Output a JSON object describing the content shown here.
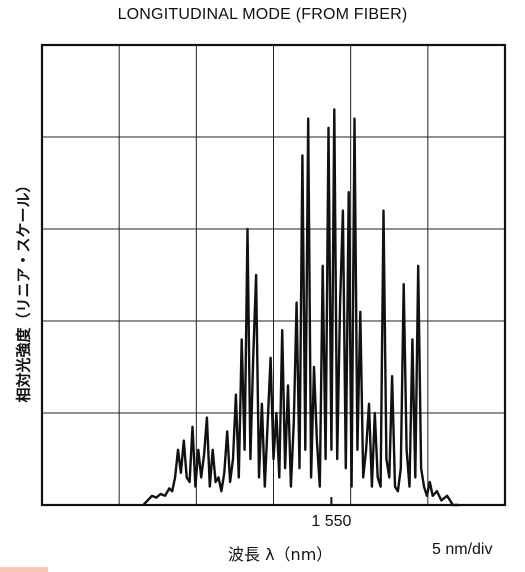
{
  "chart_data": {
    "type": "line",
    "title": "LONGITUDINAL MODE (FROM FIBER)",
    "ylabel": "相対光強度（リニア・スケール）",
    "xlabel": "波長 λ（nm）",
    "x_scale_label": "5 nm/div",
    "x_ticks": [
      {
        "value": 1550,
        "label": "1 550"
      }
    ],
    "xlim": [
      1530,
      1562
    ],
    "ylim": [
      0,
      5
    ],
    "grid": true,
    "series": [
      {
        "x": [
          1537.0,
          1537.3,
          1537.6,
          1537.9,
          1538.2,
          1538.5,
          1538.8,
          1539.0,
          1539.2,
          1539.4,
          1539.6,
          1539.8,
          1540.0,
          1540.2,
          1540.4,
          1540.6,
          1540.8,
          1541.0,
          1541.2,
          1541.4,
          1541.6,
          1541.8,
          1542.0,
          1542.2,
          1542.4,
          1542.6,
          1542.8,
          1543.0,
          1543.2,
          1543.4,
          1543.6,
          1543.8,
          1544.0,
          1544.2,
          1544.4,
          1544.6,
          1544.8,
          1545.0,
          1545.2,
          1545.4,
          1545.6,
          1545.8,
          1546.0,
          1546.2,
          1546.4,
          1546.6,
          1546.8,
          1547.0,
          1547.2,
          1547.4,
          1547.6,
          1547.8,
          1548.0,
          1548.2,
          1548.4,
          1548.6,
          1548.8,
          1549.0,
          1549.2,
          1549.4,
          1549.6,
          1549.8,
          1550.0,
          1550.2,
          1550.4,
          1550.6,
          1550.8,
          1551.0,
          1551.2,
          1551.4,
          1551.6,
          1551.8,
          1552.0,
          1552.2,
          1552.4,
          1552.6,
          1552.8,
          1553.0,
          1553.2,
          1553.4,
          1553.6,
          1553.8,
          1554.0,
          1554.2,
          1554.4,
          1554.6,
          1554.8,
          1555.0,
          1555.2,
          1555.4,
          1555.6,
          1555.8,
          1556.0,
          1556.2,
          1556.4,
          1556.6,
          1556.8,
          1557.0,
          1557.3,
          1557.6,
          1558.0,
          1558.4,
          1558.8
        ],
        "y": [
          0.0,
          0.05,
          0.1,
          0.08,
          0.12,
          0.1,
          0.18,
          0.15,
          0.3,
          0.6,
          0.35,
          0.7,
          0.3,
          0.25,
          0.85,
          0.2,
          0.6,
          0.3,
          0.55,
          0.95,
          0.2,
          0.6,
          0.25,
          0.3,
          0.15,
          0.35,
          0.8,
          0.25,
          0.5,
          1.2,
          0.3,
          1.8,
          0.6,
          3.0,
          0.5,
          1.6,
          2.5,
          0.3,
          1.1,
          0.2,
          0.9,
          1.6,
          0.5,
          1.0,
          0.3,
          1.9,
          0.4,
          1.3,
          0.2,
          0.9,
          2.2,
          0.4,
          3.8,
          0.6,
          4.2,
          0.3,
          1.5,
          0.7,
          0.2,
          2.6,
          0.5,
          4.1,
          0.6,
          4.3,
          0.5,
          2.2,
          3.2,
          0.4,
          3.4,
          0.2,
          4.2,
          0.6,
          2.1,
          0.3,
          0.6,
          1.1,
          0.2,
          1.0,
          0.3,
          0.2,
          3.2,
          0.5,
          0.3,
          1.4,
          0.2,
          0.15,
          0.4,
          2.4,
          0.6,
          0.2,
          1.8,
          0.3,
          2.6,
          0.4,
          0.2,
          0.1,
          0.25,
          0.1,
          0.15,
          0.05,
          0.1,
          0.0,
          0.0
        ]
      }
    ]
  }
}
